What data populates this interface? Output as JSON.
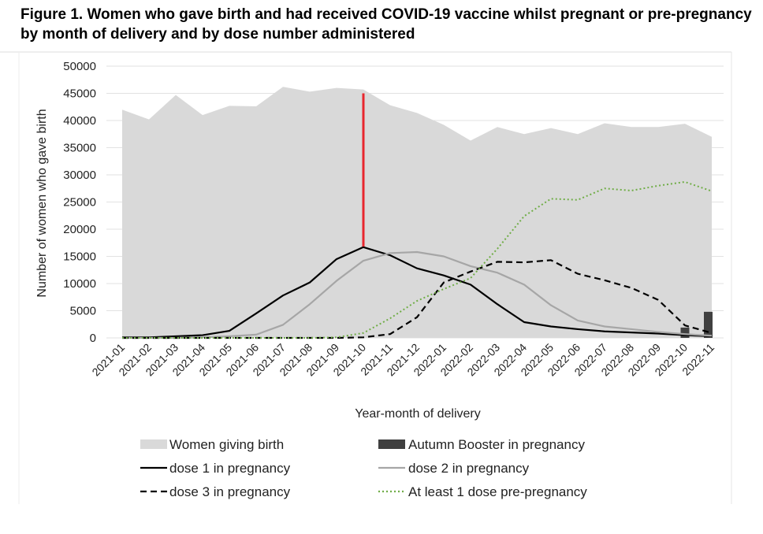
{
  "figure": {
    "title": "Figure 1. Women who gave birth and had received COVID-19 vaccine whilst pregnant or pre-pregnancy by month of delivery and by dose number administered"
  },
  "chart_data": {
    "type": "area",
    "title": "Figure 1. Women who gave birth and had received COVID-19 vaccine whilst pregnant or pre-pregnancy by month of delivery and by dose number administered",
    "xlabel": "Year-month of delivery",
    "ylabel": "Number of women who gave birth",
    "ylim": [
      0,
      50000
    ],
    "yticks": [
      0,
      5000,
      10000,
      15000,
      20000,
      25000,
      30000,
      35000,
      40000,
      45000,
      50000
    ],
    "grid": "horizontal",
    "legend_position": "bottom",
    "categories": [
      "2021-01",
      "2021-02",
      "2021-03",
      "2021-04",
      "2021-05",
      "2021-06",
      "2021-07",
      "2021-08",
      "2021-09",
      "2021-10",
      "2021-11",
      "2021-12",
      "2022-01",
      "2022-02",
      "2022-03",
      "2022-04",
      "2022-05",
      "2022-06",
      "2022-07",
      "2022-08",
      "2022-09",
      "2022-10",
      "2022-11"
    ],
    "series": [
      {
        "name": "Women giving birth",
        "kind": "area",
        "color": "#d9d9d9",
        "values": [
          42000,
          40200,
          44700,
          41000,
          42700,
          42600,
          46200,
          45300,
          46000,
          45700,
          42800,
          41400,
          39200,
          36300,
          38800,
          37500,
          38600,
          37500,
          39500,
          38800,
          38800,
          39400,
          37000
        ]
      },
      {
        "name": "Autumn Booster in pregnancy",
        "kind": "bar",
        "color": "#404040",
        "values": [
          0,
          0,
          0,
          0,
          0,
          0,
          0,
          0,
          0,
          0,
          0,
          0,
          0,
          0,
          0,
          0,
          0,
          0,
          0,
          0,
          0,
          1900,
          4800
        ]
      },
      {
        "name": "dose 1 in pregnancy",
        "kind": "line",
        "color": "#000000",
        "dash": "solid",
        "values": [
          100,
          100,
          300,
          500,
          1300,
          4500,
          7800,
          10200,
          14500,
          16700,
          15200,
          12800,
          11500,
          9800,
          6200,
          2900,
          2100,
          1600,
          1200,
          1000,
          800,
          500,
          300
        ]
      },
      {
        "name": "dose 2 in pregnancy",
        "kind": "line",
        "color": "#a6a6a6",
        "dash": "solid",
        "values": [
          0,
          0,
          0,
          100,
          300,
          600,
          2400,
          6200,
          10500,
          14200,
          15600,
          15800,
          15000,
          13200,
          12000,
          9800,
          6000,
          3200,
          2100,
          1600,
          1100,
          700,
          400
        ]
      },
      {
        "name": "dose 3 in pregnancy",
        "kind": "line",
        "color": "#000000",
        "dash": "dashed",
        "values": [
          0,
          0,
          0,
          0,
          0,
          0,
          0,
          0,
          0,
          100,
          700,
          3800,
          10200,
          12200,
          14000,
          13900,
          14300,
          11800,
          10600,
          9200,
          7000,
          2300,
          900
        ]
      },
      {
        "name": "At least 1 dose pre-pregnancy",
        "kind": "line",
        "color": "#70ad47",
        "dash": "dotted",
        "values": [
          0,
          0,
          0,
          0,
          0,
          0,
          0,
          0,
          100,
          900,
          3600,
          6800,
          9000,
          11000,
          16400,
          22400,
          25600,
          25400,
          27500,
          27100,
          28000,
          28700,
          27000
        ]
      }
    ],
    "annotations": [
      {
        "type": "vertical-line",
        "x": "2021-10",
        "y_from": 16800,
        "y_to": 45000,
        "color": "#e8262e"
      }
    ],
    "legend": {
      "items": [
        {
          "label": "Women giving birth",
          "series": 0,
          "swatch": "area"
        },
        {
          "label": "Autumn Booster in pregnancy",
          "series": 1,
          "swatch": "bar"
        },
        {
          "label": "dose 1 in pregnancy",
          "series": 2,
          "swatch": "line"
        },
        {
          "label": "dose 2 in pregnancy",
          "series": 3,
          "swatch": "line"
        },
        {
          "label": "dose 3 in pregnancy",
          "series": 4,
          "swatch": "line"
        },
        {
          "label": "At least 1 dose pre-pregnancy",
          "series": 5,
          "swatch": "line"
        }
      ]
    }
  }
}
